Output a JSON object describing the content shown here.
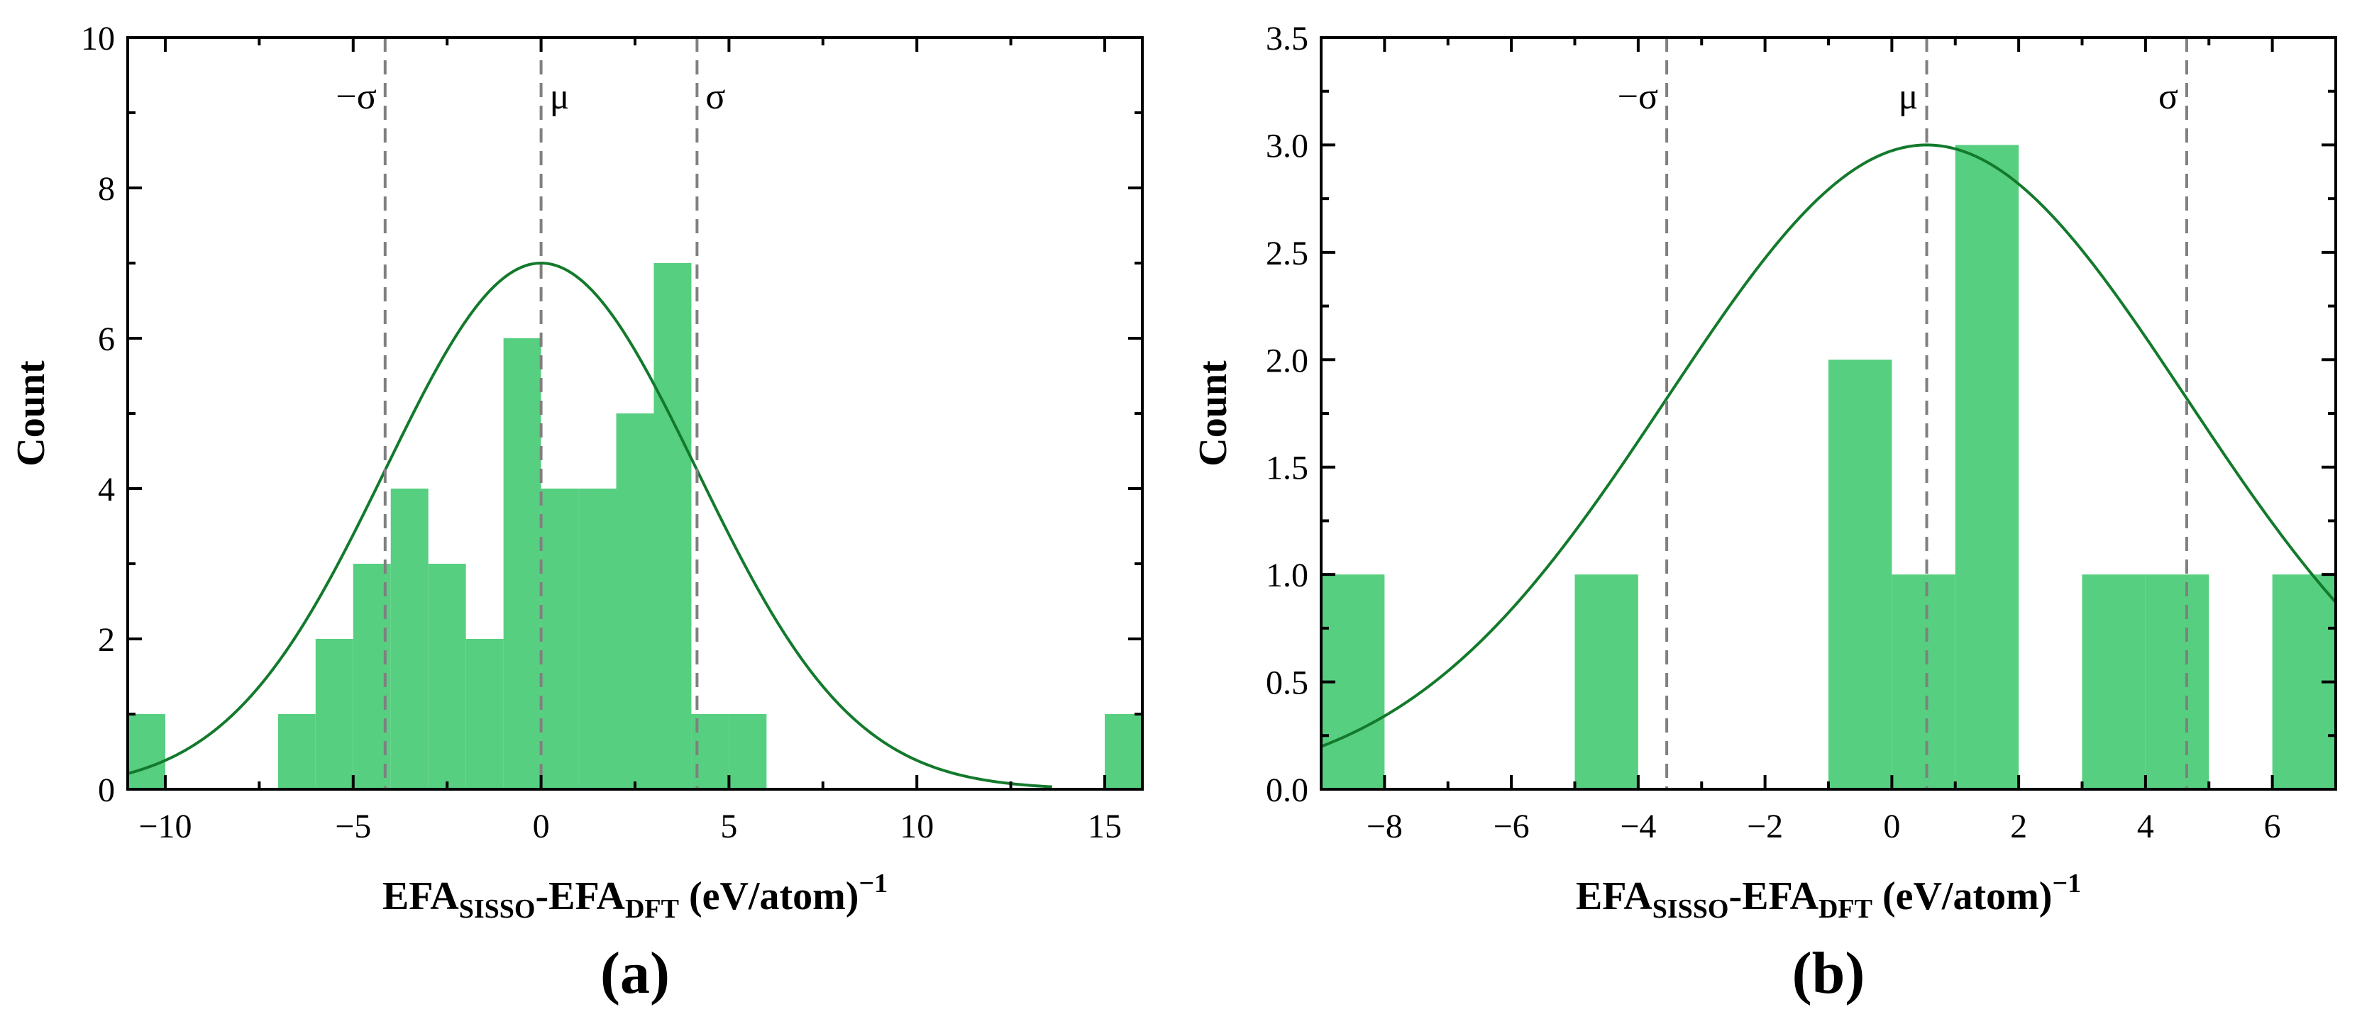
{
  "colors": {
    "bar": "#57cf80",
    "curve": "#137a2c",
    "refline": "#808080",
    "axis": "#000000"
  },
  "chart_data": [
    {
      "type": "bar",
      "panel_label": "(a)",
      "title": "",
      "ylabel": "Count",
      "xlabel": {
        "a": "EFA",
        "sub_a": "SISSO",
        "dash": "-EFA",
        "sub_b": "DFT",
        "unit": " (eV/atom)",
        "sup": "−1"
      },
      "xlim": [
        -11,
        16
      ],
      "ylim": [
        0,
        10
      ],
      "xticks": [
        -10,
        -5,
        0,
        5,
        10,
        15
      ],
      "xtick_labels": [
        "−10",
        "−5",
        "0",
        "5",
        "10",
        "15"
      ],
      "yticks": [
        0,
        2,
        4,
        6,
        8,
        10
      ],
      "ytick_labels": [
        "0",
        "2",
        "4",
        "6",
        "8",
        "10"
      ],
      "bin_width": 1,
      "bins": [
        {
          "x0": -11,
          "count": 1
        },
        {
          "x0": -7,
          "count": 1
        },
        {
          "x0": -6,
          "count": 2
        },
        {
          "x0": -5,
          "count": 3
        },
        {
          "x0": -4,
          "count": 4
        },
        {
          "x0": -3,
          "count": 3
        },
        {
          "x0": -2,
          "count": 2
        },
        {
          "x0": -1,
          "count": 6
        },
        {
          "x0": 0,
          "count": 4
        },
        {
          "x0": 1,
          "count": 4
        },
        {
          "x0": 2,
          "count": 5
        },
        {
          "x0": 3,
          "count": 7
        },
        {
          "x0": 4,
          "count": 1
        },
        {
          "x0": 5,
          "count": 1
        },
        {
          "x0": 15,
          "count": 1
        }
      ],
      "fit_curve": {
        "mu": 0,
        "sigma": 4.15,
        "peak": 7,
        "x_range": [
          -11,
          13.6
        ]
      },
      "ref_lines": [
        {
          "x": -4.15,
          "label": "−σ",
          "label_side": "left"
        },
        {
          "x": 0,
          "label": "μ",
          "label_side": "right"
        },
        {
          "x": 4.15,
          "label": "σ",
          "label_side": "right"
        }
      ]
    },
    {
      "type": "bar",
      "panel_label": "(b)",
      "title": "",
      "ylabel": "Count",
      "xlabel": {
        "a": "EFA",
        "sub_a": "SISSO",
        "dash": "-EFA",
        "sub_b": "DFT",
        "unit": " (eV/atom)",
        "sup": "−1"
      },
      "xlim": [
        -9,
        7
      ],
      "ylim": [
        0,
        3.5
      ],
      "xticks": [
        -8,
        -6,
        -4,
        -2,
        0,
        2,
        4,
        6
      ],
      "xtick_labels": [
        "−8",
        "−6",
        "−4",
        "−2",
        "0",
        "2",
        "4",
        "6"
      ],
      "yticks": [
        0,
        0.5,
        1,
        1.5,
        2,
        2.5,
        3,
        3.5
      ],
      "ytick_labels": [
        "0.0",
        "0.5",
        "1.0",
        "1.5",
        "2.0",
        "2.5",
        "3.0",
        "3.5"
      ],
      "bin_width": 1,
      "bins": [
        {
          "x0": -9,
          "count": 1
        },
        {
          "x0": -5,
          "count": 1
        },
        {
          "x0": -1,
          "count": 2
        },
        {
          "x0": 0,
          "count": 1
        },
        {
          "x0": 1,
          "count": 3
        },
        {
          "x0": 3,
          "count": 1
        },
        {
          "x0": 4,
          "count": 1
        },
        {
          "x0": 6,
          "count": 1
        }
      ],
      "fit_curve": {
        "mu": 0.55,
        "sigma": 4.1,
        "peak": 3,
        "x_range": [
          -9,
          7
        ]
      },
      "ref_lines": [
        {
          "x": -3.55,
          "label": "−σ",
          "label_side": "left"
        },
        {
          "x": 0.55,
          "label": "μ",
          "label_side": "left"
        },
        {
          "x": 4.65,
          "label": "σ",
          "label_side": "left"
        }
      ]
    }
  ]
}
